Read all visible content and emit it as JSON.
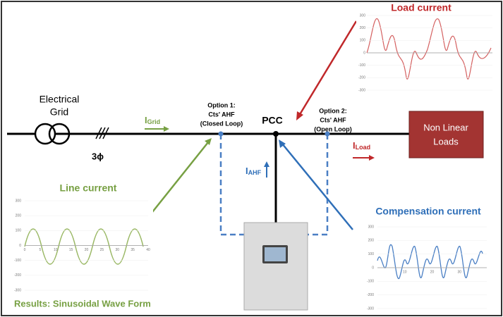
{
  "grid": {
    "label_line1": "Electrical",
    "label_line2": "Grid",
    "phase_label": "3ϕ"
  },
  "grid_current": {
    "symbol": "I",
    "subscript": "Grid"
  },
  "option1": {
    "line1": "Option 1:",
    "line2": "Cts' AHF",
    "line3": "(Closed Loop)"
  },
  "pcc": "PCC",
  "option2": {
    "line1": "Option 2:",
    "line2": "Cts' AHF",
    "line3": "(Open Loop)"
  },
  "load": {
    "line1": "Non Linear",
    "line2": "Loads"
  },
  "load_current": {
    "symbol": "I",
    "subscript": "Load"
  },
  "ahf_current": {
    "symbol": "I",
    "subscript": "AHF"
  },
  "charts": [
    {
      "title": "Load current",
      "yticks": [
        "300",
        "200",
        "100",
        "0",
        "-100",
        "-200",
        "-300"
      ],
      "xticks": []
    },
    {
      "title": "Line current",
      "yticks": [
        "300",
        "200",
        "100",
        "0",
        "-100",
        "-200",
        "-300"
      ],
      "xticks": [
        "0",
        "5",
        "10",
        "15",
        "20",
        "25",
        "30",
        "35",
        "40"
      ]
    },
    {
      "title": "Compensation current",
      "yticks": [
        "300",
        "200",
        "100",
        "0",
        "-100",
        "-200",
        "-300"
      ],
      "xticks": [
        "10",
        "20",
        "30"
      ]
    }
  ],
  "results": "Results: Sinusoidal Wave Form"
}
